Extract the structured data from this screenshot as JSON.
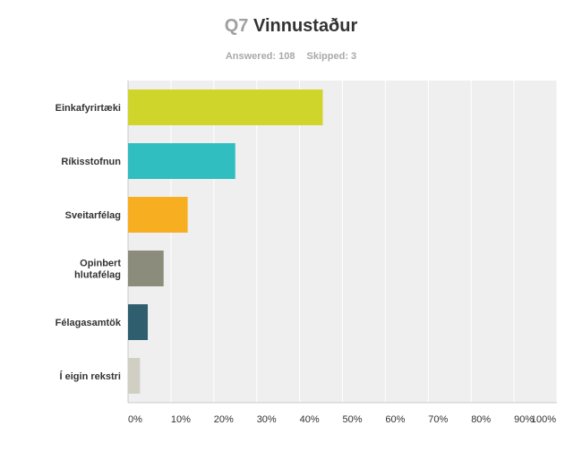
{
  "header": {
    "question_number": "Q7",
    "title": "Vinnustaður",
    "answered_label": "Answered: 108",
    "skipped_label": "Skipped: 3"
  },
  "colors": {
    "plot_background": "#efefef",
    "gridline": "#ffffff",
    "axis": "#c8c8c8"
  },
  "chart_data": {
    "type": "bar",
    "orientation": "horizontal",
    "title": "Vinnustaður",
    "categories": [
      "Einkafyrirtæki",
      "Ríkisstofnun",
      "Sveitarfélag",
      "Opinbert hlutafélag",
      "Félagasamtök",
      "Í eigin rekstri"
    ],
    "category_lines": [
      [
        "Einkafyrirtæki"
      ],
      [
        "Ríkisstofnun"
      ],
      [
        "Sveitarfélag"
      ],
      [
        "Opinbert",
        "hlutafélag"
      ],
      [
        "Félagasamtök"
      ],
      [
        "Í eigin rekstri"
      ]
    ],
    "values": [
      45.4,
      25.0,
      13.9,
      8.3,
      4.6,
      2.8
    ],
    "value_unit": "%",
    "colors": [
      "#d0d52b",
      "#31bec0",
      "#f7ae21",
      "#8c8c7c",
      "#2f5f6e",
      "#d1cfc4"
    ],
    "xlim": [
      0,
      100
    ],
    "xticks": [
      "0%",
      "10%",
      "20%",
      "30%",
      "40%",
      "50%",
      "60%",
      "70%",
      "80%",
      "90%",
      "100%"
    ],
    "grid": true,
    "legend": "none"
  }
}
